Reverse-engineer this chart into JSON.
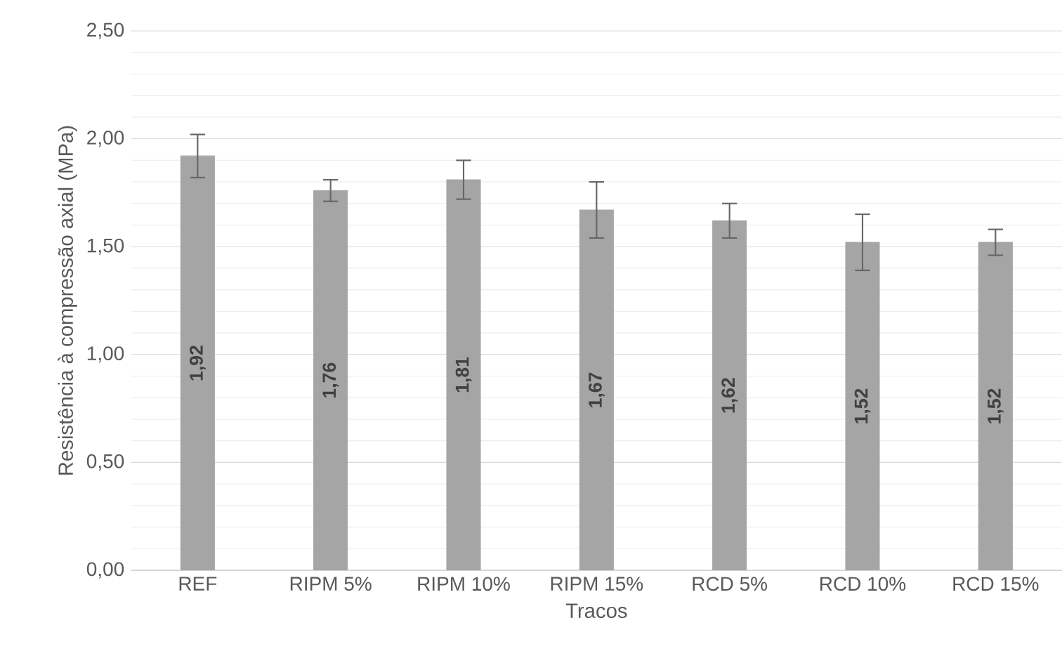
{
  "chart_data": {
    "type": "bar",
    "xlabel": "Tracos",
    "ylabel": "Resistência à compressão axial (MPa)",
    "categories": [
      "REF",
      "RIPM 5%",
      "RIPM 10%",
      "RIPM 15%",
      "RCD 5%",
      "RCD 10%",
      "RCD 15%"
    ],
    "values": [
      1.92,
      1.76,
      1.81,
      1.67,
      1.62,
      1.52,
      1.52
    ],
    "errors": [
      0.1,
      0.05,
      0.09,
      0.13,
      0.08,
      0.13,
      0.06
    ],
    "value_labels": [
      "1,92",
      "1,76",
      "1,81",
      "1,67",
      "1,62",
      "1,52",
      "1,52"
    ],
    "color": "#a5a5a5",
    "ylim": [
      0,
      2.5
    ],
    "yticks": [
      {
        "value": 0,
        "label": "0,00"
      },
      {
        "value": 0.5,
        "label": "0,50"
      },
      {
        "value": 1,
        "label": "1,00"
      },
      {
        "value": 1.5,
        "label": "1,50"
      },
      {
        "value": 2,
        "label": "2,00"
      },
      {
        "value": 2.5,
        "label": "2,50"
      }
    ],
    "grid": "y"
  }
}
